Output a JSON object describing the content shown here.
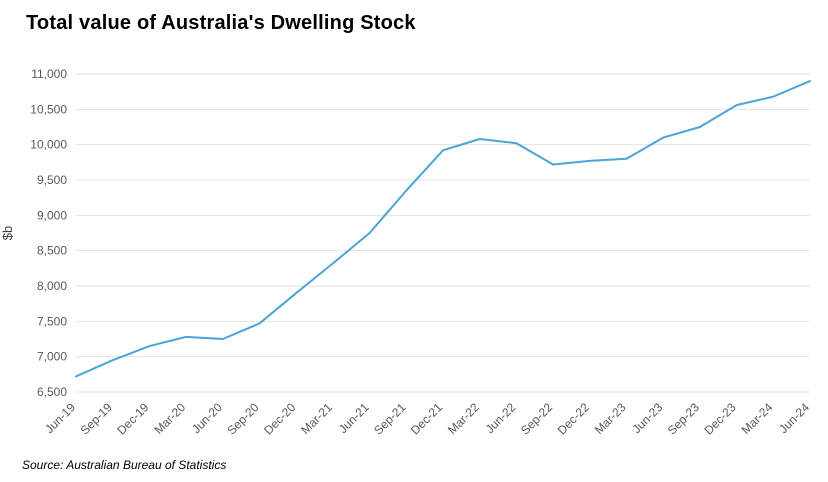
{
  "chart_data": {
    "type": "line",
    "title": "Total value of Australia's Dwelling Stock",
    "ylabel": "$b",
    "xlabel": "",
    "ylim": [
      6500,
      11000
    ],
    "ytick_step": 500,
    "grid": true,
    "legend_position": "none",
    "line_color": "#4aa4d8",
    "grid_color": "#e2e2e2",
    "tick_label_color": "#595959",
    "categories": [
      "Jun-19",
      "Sep-19",
      "Dec-19",
      "Mar-20",
      "Jun-20",
      "Sep-20",
      "Dec-20",
      "Mar-21",
      "Jun-21",
      "Sep-21",
      "Dec-21",
      "Mar-22",
      "Jun-22",
      "Sep-22",
      "Dec-22",
      "Mar-23",
      "Jun-23",
      "Sep-23",
      "Dec-23",
      "Mar-24",
      "Jun-24"
    ],
    "values": [
      6720,
      6950,
      7150,
      7280,
      7250,
      7470,
      7900,
      8320,
      8750,
      9350,
      9920,
      10080,
      10020,
      9720,
      9770,
      9800,
      10100,
      10250,
      10560,
      10680,
      10900
    ]
  },
  "source": {
    "text": "Source: Australian Bureau of Statistics"
  }
}
